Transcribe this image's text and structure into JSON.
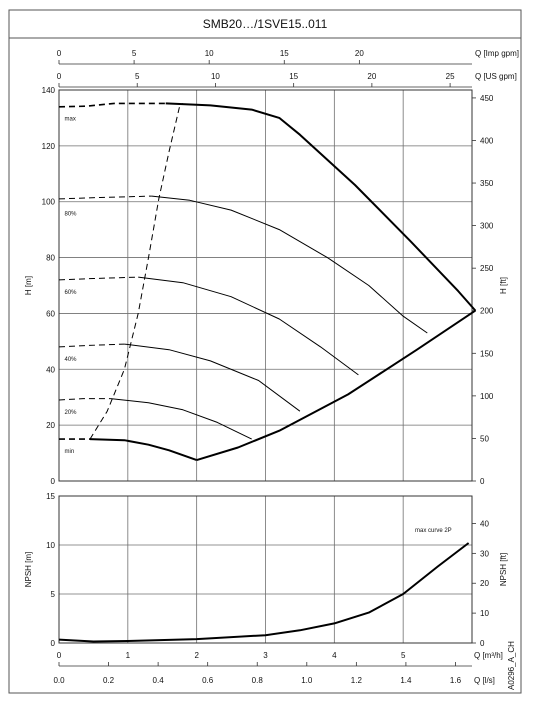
{
  "header": {
    "title": "SMB20…/1SVE15..011"
  },
  "side_label": "A0296_A_CH",
  "colors": {
    "line": "#000000",
    "grid": "#6f6f6f",
    "frame": "#555555"
  },
  "chart_data": [
    {
      "type": "line",
      "name": "head-curves",
      "top_axes": [
        {
          "label": "Q [Imp gpm]",
          "ticks": [
            0,
            5,
            10,
            15,
            20
          ],
          "range": [
            0,
            27.5
          ]
        },
        {
          "label": "Q [US gpm]",
          "ticks": [
            0,
            5,
            10,
            15,
            20,
            25
          ],
          "range": [
            0,
            26.4
          ]
        }
      ],
      "x_range_m3h": [
        0,
        6
      ],
      "left_axis": {
        "label": "H [m]",
        "ticks": [
          0,
          20,
          40,
          60,
          80,
          100,
          120,
          140
        ],
        "range": [
          0,
          140
        ]
      },
      "right_axis": {
        "label": "H [ft]",
        "ticks": [
          0,
          50,
          100,
          150,
          200,
          250,
          300,
          350,
          400,
          450
        ],
        "range": [
          0,
          459.3
        ]
      },
      "grid": true,
      "curve_labels": [
        "max",
        "80%",
        "60%",
        "40%",
        "20%",
        "min"
      ],
      "series": [
        {
          "label": "max",
          "solid": [
            [
              1.55,
              135.2
            ],
            [
              2.2,
              134.5
            ],
            [
              2.8,
              133
            ],
            [
              3.2,
              130
            ],
            [
              3.5,
              124
            ],
            [
              4.3,
              106
            ],
            [
              5.1,
              86
            ],
            [
              5.8,
              68
            ],
            [
              6.05,
              61
            ]
          ],
          "dashed": [
            [
              0.0,
              134
            ],
            [
              0.4,
              134.2
            ],
            [
              0.8,
              135.2
            ],
            [
              1.55,
              135.2
            ]
          ]
        },
        {
          "label": "80%",
          "solid": [
            [
              1.35,
              102
            ],
            [
              1.9,
              100.5
            ],
            [
              2.5,
              97
            ],
            [
              3.2,
              90
            ],
            [
              3.9,
              80
            ],
            [
              4.5,
              70
            ],
            [
              5.0,
              59
            ],
            [
              5.35,
              53
            ]
          ],
          "dashed": [
            [
              0.0,
              101
            ],
            [
              0.6,
              101.5
            ],
            [
              1.35,
              102
            ]
          ]
        },
        {
          "label": "60%",
          "solid": [
            [
              1.15,
              73
            ],
            [
              1.8,
              71
            ],
            [
              2.5,
              66
            ],
            [
              3.2,
              58
            ],
            [
              3.8,
              48
            ],
            [
              4.35,
              38
            ]
          ],
          "dashed": [
            [
              0.0,
              72
            ],
            [
              0.5,
              72.5
            ],
            [
              1.15,
              73
            ]
          ]
        },
        {
          "label": "40%",
          "solid": [
            [
              0.95,
              49
            ],
            [
              1.6,
              47
            ],
            [
              2.2,
              43
            ],
            [
              2.9,
              36
            ],
            [
              3.5,
              25
            ]
          ],
          "dashed": [
            [
              0.0,
              48
            ],
            [
              0.4,
              48.5
            ],
            [
              0.95,
              49
            ]
          ]
        },
        {
          "label": "20%",
          "solid": [
            [
              0.75,
              29.5
            ],
            [
              1.3,
              28
            ],
            [
              1.8,
              25.5
            ],
            [
              2.3,
              21
            ],
            [
              2.8,
              15
            ]
          ],
          "dashed": [
            [
              0.0,
              29
            ],
            [
              0.35,
              29.5
            ],
            [
              0.75,
              29.5
            ]
          ]
        },
        {
          "label": "min",
          "solid": [
            [
              0.45,
              15
            ],
            [
              0.95,
              14.6
            ],
            [
              1.3,
              13
            ],
            [
              1.6,
              11
            ],
            [
              2.0,
              7.5
            ]
          ],
          "dashed": [
            [
              0.0,
              15
            ],
            [
              0.45,
              15
            ]
          ]
        },
        {
          "label": "max-limit",
          "solid": [
            [
              2.0,
              7.5
            ],
            [
              2.6,
              12
            ],
            [
              3.2,
              18
            ],
            [
              4.2,
              31
            ],
            [
              5.2,
              47
            ],
            [
              6.05,
              61
            ]
          ]
        },
        {
          "label": "min-to-max-limit",
          "dashed": [
            [
              0.45,
              15
            ],
            [
              0.7,
              25
            ],
            [
              0.95,
              40
            ],
            [
              1.15,
              60
            ],
            [
              1.3,
              80
            ],
            [
              1.45,
              101
            ],
            [
              1.6,
              118
            ],
            [
              1.75,
              134
            ],
            [
              1.8,
              135.2
            ]
          ]
        }
      ]
    },
    {
      "type": "line",
      "name": "npsh-curve",
      "bottom_axes": [
        {
          "label": "Q [m³/h]",
          "ticks": [
            0,
            1,
            2,
            3,
            4,
            5
          ],
          "range": [
            0,
            6
          ]
        },
        {
          "label": "Q [l/s]",
          "ticks": [
            "0.0",
            "0.2",
            "0.4",
            "0.6",
            "0.8",
            "1.0",
            "1.2",
            "1.4",
            "1.6"
          ],
          "range": [
            0,
            1.6667
          ]
        }
      ],
      "left_axis": {
        "label": "NPSH [m]",
        "ticks": [
          0,
          5,
          10,
          15
        ],
        "range": [
          0,
          15
        ]
      },
      "right_axis": {
        "label": "NPSH [ft]",
        "ticks": [
          0,
          10,
          20,
          30,
          40
        ],
        "range": [
          0,
          49.2
        ]
      },
      "grid": true,
      "annotation": "max curve 2P",
      "series": [
        {
          "label": "max curve 2P",
          "points": [
            [
              0.0,
              0.35
            ],
            [
              0.5,
              0.15
            ],
            [
              1.0,
              0.2
            ],
            [
              2.0,
              0.4
            ],
            [
              3.0,
              0.8
            ],
            [
              3.5,
              1.3
            ],
            [
              4.0,
              2.0
            ],
            [
              4.5,
              3.1
            ],
            [
              5.0,
              5.0
            ],
            [
              5.5,
              7.8
            ],
            [
              5.95,
              10.2
            ]
          ]
        }
      ]
    }
  ]
}
